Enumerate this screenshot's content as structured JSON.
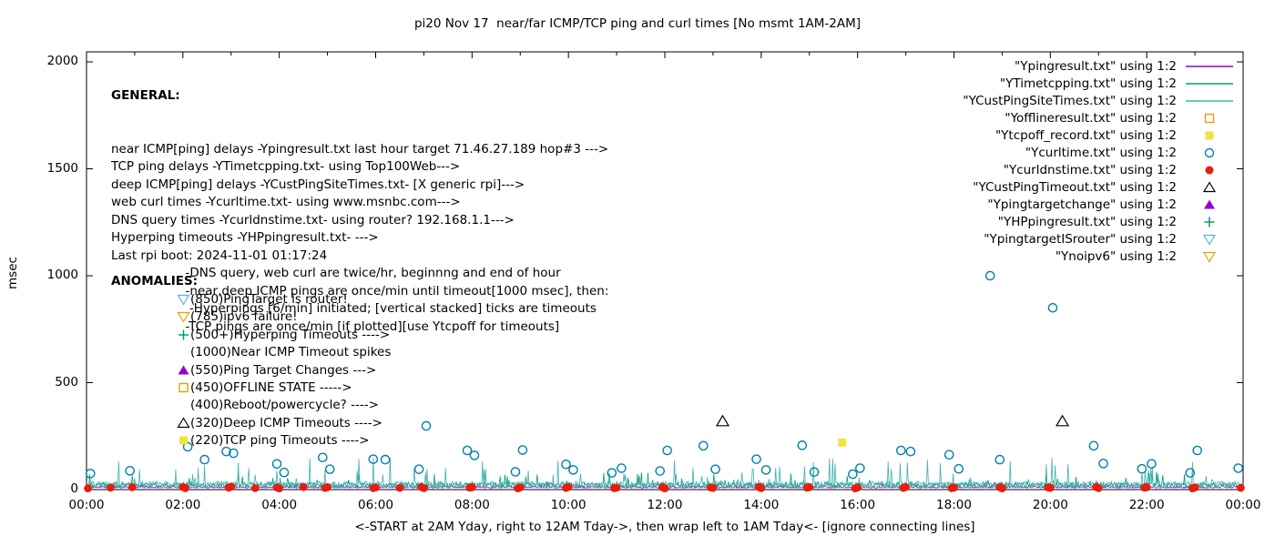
{
  "chart_data": {
    "type": "line",
    "title": "pi20 Nov 17  near/far ICMP/TCP ping and curl times [No msmt 1AM-2AM]",
    "xlabel": "<-START at 2AM Yday, right to 12AM Tday->, then wrap left to 1AM Tday<- [ignore connecting lines]",
    "ylabel": "msec",
    "ylim": [
      0,
      2000
    ],
    "xlim_hours": [
      0,
      24
    ],
    "grid": false,
    "legend_position": "top-right",
    "x_tick_labels": [
      "00:00",
      "02:00",
      "04:00",
      "06:00",
      "08:00",
      "10:00",
      "12:00",
      "14:00",
      "16:00",
      "18:00",
      "20:00",
      "22:00",
      "00:00"
    ],
    "y_tick_labels": [
      "0",
      "500",
      "1000",
      "1500",
      "2000"
    ],
    "legend": [
      {
        "label": "\"Ypingresult.txt\" using 1:2",
        "symbol": "line",
        "color": "#9400d3"
      },
      {
        "label": "\"YTimetcpping.txt\" using 1:2",
        "symbol": "line",
        "color": "#009e73"
      },
      {
        "label": "\"YCustPingSiteTimes.txt\" using 1:2",
        "symbol": "line",
        "color": "#40b0b0"
      },
      {
        "label": "\"Yofflineresult.txt\" using 1:2",
        "symbol": "square-open",
        "color": "#e69f00"
      },
      {
        "label": "\"Ytcpoff_record.txt\" using 1:2",
        "symbol": "square-filled",
        "color": "#f0e442"
      },
      {
        "label": "\"Ycurltime.txt\" using 1:2",
        "symbol": "circle-open",
        "color": "#0080a8"
      },
      {
        "label": "\"Ycurldnstime.txt\" using 1:2",
        "symbol": "circle-filled",
        "color": "#e51e10"
      },
      {
        "label": "\"YCustPingTimeout.txt\" using 1:2",
        "symbol": "triangle-open",
        "color": "#000000"
      },
      {
        "label": "\"Ypingtargetchange\" using 1:2",
        "symbol": "triangle-filled",
        "color": "#9400d3"
      },
      {
        "label": "\"YHPpingresult.txt\" using 1:2",
        "symbol": "plus",
        "color": "#009e73"
      },
      {
        "label": "\"YpingtargetISrouter\" using 1:2",
        "symbol": "tridown-open",
        "color": "#56b4e9"
      },
      {
        "label": "\"Ynoipv6\" using 1:2",
        "symbol": "tridown-open",
        "color": "#e69f00"
      }
    ],
    "noise_series": [
      {
        "name": "Ypingresult",
        "color": "#9400d3",
        "seed": 11,
        "baseline": 10,
        "noise": 8,
        "spike_prob": 0.005,
        "spike_max": 30
      },
      {
        "name": "YTimetcpping",
        "color": "#009e73",
        "seed": 23,
        "baseline": 18,
        "noise": 22,
        "spike_prob": 0.04,
        "spike_max": 60
      },
      {
        "name": "YCustPingSiteTimes",
        "color": "#40b0b0",
        "seed": 37,
        "baseline": 20,
        "noise": 30,
        "spike_prob": 0.06,
        "spike_max": 120
      }
    ],
    "scatter_series": [
      {
        "name": "Ycurltime",
        "marker": "circle-open",
        "color": "#0080a8",
        "points": [
          [
            0.08,
            75
          ],
          [
            0.9,
            88
          ],
          [
            2.1,
            200
          ],
          [
            2.45,
            140
          ],
          [
            2.9,
            178
          ],
          [
            3.05,
            170
          ],
          [
            3.95,
            120
          ],
          [
            4.1,
            80
          ],
          [
            4.9,
            150
          ],
          [
            5.05,
            95
          ],
          [
            5.95,
            142
          ],
          [
            6.2,
            140
          ],
          [
            6.9,
            95
          ],
          [
            7.05,
            298
          ],
          [
            7.9,
            183
          ],
          [
            8.05,
            160
          ],
          [
            8.9,
            83
          ],
          [
            9.05,
            185
          ],
          [
            9.95,
            118
          ],
          [
            10.1,
            92
          ],
          [
            10.9,
            78
          ],
          [
            11.1,
            100
          ],
          [
            11.9,
            87
          ],
          [
            12.05,
            183
          ],
          [
            12.8,
            205
          ],
          [
            13.05,
            95
          ],
          [
            13.9,
            142
          ],
          [
            14.1,
            92
          ],
          [
            14.85,
            207
          ],
          [
            15.1,
            82
          ],
          [
            15.9,
            72
          ],
          [
            16.05,
            100
          ],
          [
            16.9,
            183
          ],
          [
            17.1,
            178
          ],
          [
            17.9,
            163
          ],
          [
            18.1,
            97
          ],
          [
            18.75,
            1000
          ],
          [
            18.95,
            140
          ],
          [
            20.05,
            850
          ],
          [
            20.9,
            205
          ],
          [
            21.1,
            122
          ],
          [
            21.9,
            97
          ],
          [
            22.1,
            120
          ],
          [
            22.9,
            78
          ],
          [
            23.05,
            183
          ],
          [
            23.9,
            100
          ]
        ]
      },
      {
        "name": "Ycurldnstime",
        "marker": "circle-filled",
        "color": "#e51e10",
        "points": [
          [
            0.03,
            6
          ],
          [
            0.5,
            9
          ],
          [
            0.95,
            11
          ],
          [
            2.0,
            12
          ],
          [
            2.05,
            7
          ],
          [
            2.95,
            9
          ],
          [
            3.0,
            13
          ],
          [
            3.5,
            7
          ],
          [
            3.95,
            10
          ],
          [
            4.0,
            6
          ],
          [
            4.5,
            12
          ],
          [
            4.95,
            8
          ],
          [
            5.0,
            11
          ],
          [
            5.95,
            7
          ],
          [
            6.0,
            10
          ],
          [
            6.5,
            8
          ],
          [
            6.95,
            12
          ],
          [
            7.0,
            7
          ],
          [
            7.95,
            9
          ],
          [
            8.0,
            11
          ],
          [
            8.95,
            6
          ],
          [
            9.0,
            10
          ],
          [
            9.95,
            8
          ],
          [
            10.0,
            12
          ],
          [
            10.95,
            7
          ],
          [
            11.0,
            9
          ],
          [
            11.95,
            11
          ],
          [
            12.0,
            6
          ],
          [
            12.95,
            10
          ],
          [
            13.0,
            8
          ],
          [
            13.95,
            12
          ],
          [
            14.0,
            7
          ],
          [
            14.95,
            9
          ],
          [
            15.0,
            11
          ],
          [
            15.95,
            6
          ],
          [
            16.0,
            10
          ],
          [
            16.95,
            8
          ],
          [
            17.0,
            12
          ],
          [
            17.95,
            7
          ],
          [
            18.0,
            9
          ],
          [
            18.95,
            11
          ],
          [
            19.0,
            6
          ],
          [
            19.95,
            10
          ],
          [
            20.0,
            8
          ],
          [
            20.95,
            12
          ],
          [
            21.0,
            7
          ],
          [
            21.95,
            9
          ],
          [
            22.0,
            11
          ],
          [
            22.95,
            6
          ],
          [
            23.0,
            10
          ],
          [
            23.95,
            8
          ]
        ]
      },
      {
        "name": "YCustPingTimeout",
        "marker": "triangle-open",
        "color": "#000000",
        "points": [
          [
            13.2,
            320
          ],
          [
            20.25,
            320
          ]
        ]
      },
      {
        "name": "Ytcpoff_record",
        "marker": "square-filled",
        "color": "#f0e442",
        "points": [
          [
            15.68,
            220
          ]
        ]
      }
    ],
    "annotations": {
      "general_header": "GENERAL:",
      "general_lines": [
        "near ICMP[ping] delays -Ypingresult.txt last hour target 71.46.27.189 hop#3 --->",
        "TCP ping delays -YTimetcpping.txt- using Top100Web--->",
        "deep ICMP[ping] delays -YCustPingSiteTimes.txt- [X generic rpi]--->",
        "web curl times -Ycurltime.txt- using www.msnbc.com--->",
        "DNS query times -Ycurldnstime.txt- using router? 192.168.1.1--->",
        "Hyperping timeouts -YHPpingresult.txt- --->",
        "Last rpi boot: 2024-11-01 01:17:24",
        "                   -DNS query, web curl are twice/hr, beginnng and end of hour",
        "                   -near,deep ICMP pings are once/min until timeout[1000 msec], then:",
        "                    -Hyperpings [6/min] initiated; [vertical stacked] ticks are timeouts",
        "                   -TCP pings are once/min [if plotted][use Ytcpoff for timeouts]"
      ],
      "anomalies_header": "ANOMALIES:",
      "anomalies": [
        {
          "icon": "tridown-open",
          "color": "#56b4e9",
          "text": "(850)PingTarget is router!"
        },
        {
          "icon": "tridown-open",
          "color": "#e69f00",
          "text": "(785)ipv6 failure!"
        },
        {
          "icon": "plus",
          "color": "#009e73",
          "text": "(500+)Hyperping Timeouts ---->"
        },
        {
          "icon": "none",
          "color": "",
          "text": "(1000)Near ICMP Timeout spikes"
        },
        {
          "icon": "triangle-filled",
          "color": "#9400d3",
          "text": "(550)Ping Target Changes --->"
        },
        {
          "icon": "square-open",
          "color": "#e69f00",
          "text": "(450)OFFLINE STATE ----->"
        },
        {
          "icon": "none",
          "color": "",
          "text": "(400)Reboot/powercycle? ---->"
        },
        {
          "icon": "triangle-open",
          "color": "#000000",
          "text": "(320)Deep ICMP Timeouts ---->"
        },
        {
          "icon": "square-filled",
          "color": "#f0e442",
          "text": "(220)TCP ping Timeouts ---->"
        }
      ]
    }
  }
}
